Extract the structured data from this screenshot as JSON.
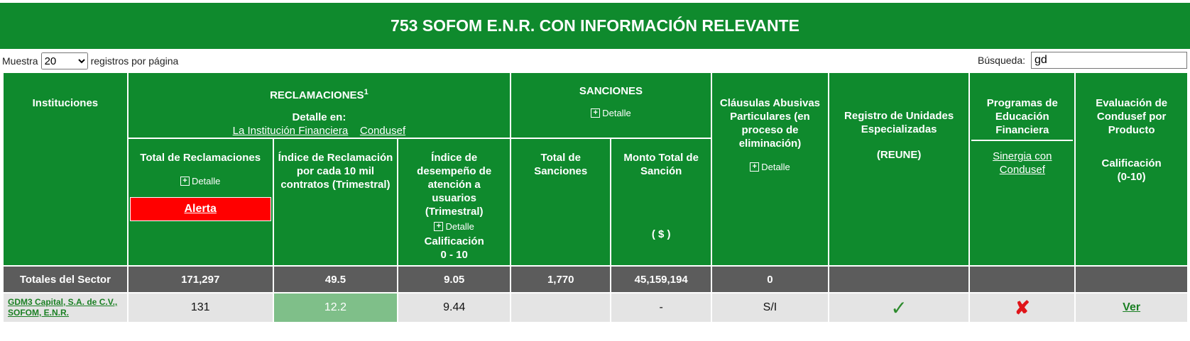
{
  "title": "753 SOFOM E.N.R. CON INFORMACIÓN RELEVANTE",
  "controls": {
    "show_prefix": "Muestra",
    "page_size": "20",
    "show_suffix": "registros por página",
    "search_label": "Búsqueda:",
    "search_value": "gd"
  },
  "headers": {
    "instituciones": "Instituciones",
    "reclamaciones": "RECLAMACIONES",
    "reclamaciones_sup": "1",
    "detalle_en": "Detalle en:",
    "link_institucion": "La Institución Financiera",
    "link_condusef": "Condusef",
    "total_reclamaciones": "Total de Reclamaciones",
    "detalle": "Detalle",
    "alerta": "Alerta",
    "indice_reclamacion": "Índice de Reclamación por cada 10 mil contratos (Trimestral)",
    "indice_desempeno": "Índice de desempeño de atención a usuarios (Trimestral)",
    "calificacion_0_10": "Calificación",
    "calificacion_range": "0 - 10",
    "sanciones": "SANCIONES",
    "total_sanciones": "Total de Sanciones",
    "monto_total": "Monto Total de Sanción",
    "monto_unit": "( $ )",
    "clausulas": "Cláusulas Abusivas Particulares (en proceso de eliminación)",
    "reune": "Registro de Unidades Especializadas",
    "reune_abbr": "(REUNE)",
    "programas": "Programas de Educación Financiera",
    "sinergia": "Sinergia con Condusef",
    "evaluacion": "Evaluación de Condusef por Producto",
    "calificacion_eval": "Calificación (0-10)"
  },
  "totals": {
    "label": "Totales del Sector",
    "total_reclamaciones": "171,297",
    "indice_reclamacion": "49.5",
    "indice_desempeno": "9.05",
    "total_sanciones": "1,770",
    "monto_total": "45,159,194",
    "clausulas": "0"
  },
  "rows": [
    {
      "institution": "GDM3 Capital, S.A. de C.V., SOFOM, E.N.R.",
      "total_reclamaciones": "131",
      "indice_reclamacion": "12.2",
      "indice_desempeno": "9.44",
      "total_sanciones": "",
      "monto_total": "-",
      "clausulas": "S/I",
      "reune_icon": "check-icon",
      "programas_icon": "cross-icon",
      "evaluacion": "Ver"
    }
  ]
}
